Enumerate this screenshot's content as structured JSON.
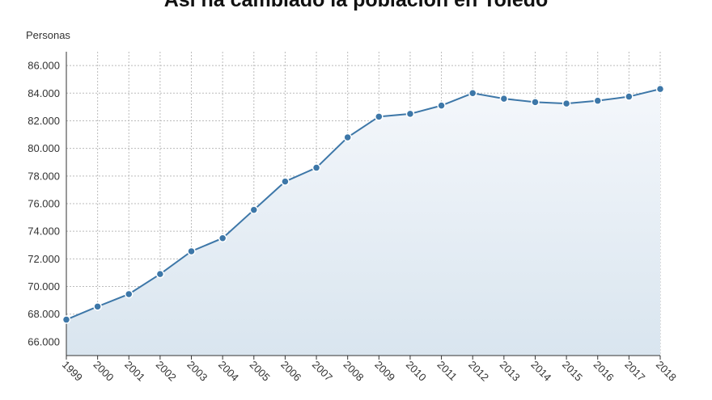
{
  "chart_data": {
    "type": "area",
    "title": "Así ha cambiado la población en Toledo",
    "ylabel": "Personas",
    "xlabel": "",
    "x": [
      "1999",
      "2000",
      "2001",
      "2002",
      "2003",
      "2004",
      "2005",
      "2006",
      "2007",
      "2008",
      "2009",
      "2010",
      "2011",
      "2012",
      "2013",
      "2014",
      "2015",
      "2016",
      "2017",
      "2018"
    ],
    "series": [
      {
        "values": [
          67600,
          68550,
          69450,
          70900,
          72550,
          73500,
          75550,
          77600,
          78600,
          80800,
          82300,
          82500,
          83100,
          84000,
          83600,
          83350,
          83250,
          83450,
          83750,
          84300
        ]
      }
    ],
    "yticks": [
      "66.000",
      "68.000",
      "70.000",
      "72.000",
      "74.000",
      "76.000",
      "78.000",
      "80.000",
      "82.000",
      "84.000",
      "86.000"
    ],
    "ylim": [
      65000,
      87000
    ],
    "grid": true,
    "legend": "none",
    "colors": {
      "line": "#3d77a8",
      "marker": "#3d77a8",
      "fill_top": "#f4f7fb",
      "fill_bottom": "#d9e5ef",
      "grid": "#bbbbbb"
    }
  }
}
